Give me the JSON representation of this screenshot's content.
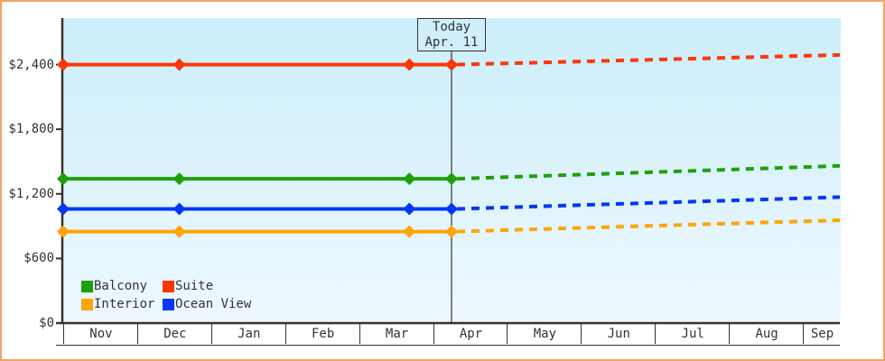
{
  "colors": {
    "frame_border": "#f0a55f",
    "plot_bg_top": "#cbeefb",
    "plot_bg_bottom": "#eef8fe",
    "axis": "#333333",
    "text": "#333333",
    "today_line": "#444444",
    "today_box_bg": "#cfeffb"
  },
  "chart_data": {
    "type": "line",
    "title": "",
    "xlabel": "",
    "ylabel": "",
    "x_axis": {
      "tick_labels": [
        "Nov",
        "Dec",
        "Jan",
        "Feb",
        "Mar",
        "Apr",
        "May",
        "Jun",
        "Jul",
        "Aug",
        "Sep"
      ],
      "end_month_fraction": 10.5,
      "grid": false
    },
    "y_axis": {
      "tick_labels": [
        "$0",
        "$600",
        "$1,200",
        "$1,800",
        "$2,400"
      ],
      "tick_values": [
        0,
        600,
        1200,
        1800,
        2400
      ],
      "range": [
        0,
        2830
      ],
      "grid": false
    },
    "today_marker": {
      "label_line1": "Today",
      "label_line2": "Apr. 11",
      "month_position": 5.25
    },
    "observed_month_positions": [
      0,
      1.57,
      4.68,
      5.25
    ],
    "series": [
      {
        "name": "Suite",
        "color": "#fa3806",
        "observed_values": [
          2400,
          2400,
          2400,
          2400
        ],
        "forecast_end_value": 2490
      },
      {
        "name": "Balcony",
        "color": "#1da10a",
        "observed_values": [
          1340,
          1340,
          1340,
          1340
        ],
        "forecast_end_value": 1460
      },
      {
        "name": "Ocean View",
        "color": "#0437f7",
        "observed_values": [
          1060,
          1060,
          1060,
          1060
        ],
        "forecast_end_value": 1170
      },
      {
        "name": "Interior",
        "color": "#ffa408",
        "observed_values": [
          850,
          850,
          850,
          850
        ],
        "forecast_end_value": 955
      }
    ],
    "legend": {
      "position": "bottom-left-inside",
      "order": [
        "Balcony",
        "Suite",
        "Interior",
        "Ocean View"
      ]
    },
    "line_style": {
      "observed": "solid",
      "forecast": "dashed"
    }
  }
}
